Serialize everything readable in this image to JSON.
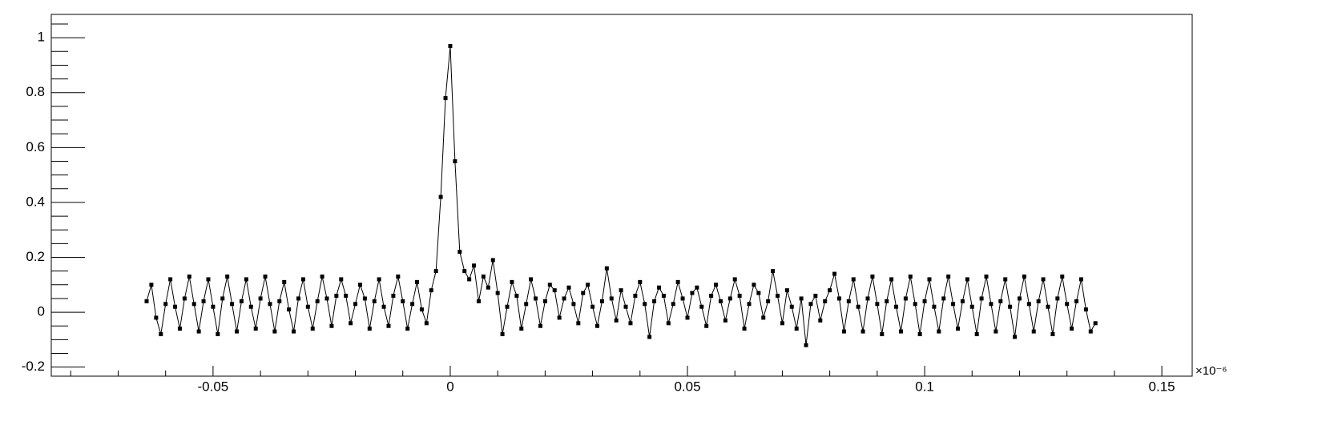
{
  "chart_data": {
    "type": "line",
    "color": "#000000",
    "x_multiplier": "×10⁻⁶",
    "xlim": [
      -0.0841,
      0.1564
    ],
    "ylim": [
      -0.233,
      1.085
    ],
    "xticks": [
      -0.05,
      0,
      0.05,
      0.1,
      0.15
    ],
    "yticks": [
      -0.2,
      0,
      0.2,
      0.4,
      0.6,
      0.8,
      1
    ],
    "xminorticks": [
      -0.08,
      -0.07,
      -0.06,
      -0.04,
      -0.03,
      -0.02,
      -0.01,
      0.01,
      0.02,
      0.03,
      0.04,
      0.06,
      0.07,
      0.08,
      0.09,
      0.11,
      0.12,
      0.13,
      0.14
    ],
    "yminorticks": [
      -0.15,
      -0.1,
      -0.05,
      0.05,
      0.1,
      0.15,
      0.25,
      0.3,
      0.35,
      0.45,
      0.5,
      0.55,
      0.65,
      0.7,
      0.75,
      0.85,
      0.9,
      0.95,
      1.05
    ],
    "x": [
      -0.064,
      -0.063,
      -0.062,
      -0.061,
      -0.06,
      -0.059,
      -0.058,
      -0.057,
      -0.056,
      -0.055,
      -0.054,
      -0.053,
      -0.052,
      -0.051,
      -0.05,
      -0.049,
      -0.048,
      -0.047,
      -0.046,
      -0.045,
      -0.044,
      -0.043,
      -0.042,
      -0.041,
      -0.04,
      -0.039,
      -0.038,
      -0.037,
      -0.036,
      -0.035,
      -0.034,
      -0.033,
      -0.032,
      -0.031,
      -0.03,
      -0.029,
      -0.028,
      -0.027,
      -0.026,
      -0.025,
      -0.024,
      -0.023,
      -0.022,
      -0.021,
      -0.02,
      -0.019,
      -0.018,
      -0.017,
      -0.016,
      -0.015,
      -0.014,
      -0.013,
      -0.012,
      -0.011,
      -0.01,
      -0.009,
      -0.008,
      -0.007,
      -0.006,
      -0.005,
      -0.004,
      -0.003,
      -0.002,
      -0.001,
      0,
      0.001,
      0.002,
      0.003,
      0.004,
      0.005,
      0.006,
      0.007,
      0.008,
      0.009,
      0.01,
      0.011,
      0.012,
      0.013,
      0.014,
      0.015,
      0.016,
      0.017,
      0.018,
      0.019,
      0.02,
      0.021,
      0.022,
      0.023,
      0.024,
      0.025,
      0.026,
      0.027,
      0.028,
      0.029,
      0.03,
      0.031,
      0.032,
      0.033,
      0.034,
      0.035,
      0.036,
      0.037,
      0.038,
      0.039,
      0.04,
      0.041,
      0.042,
      0.043,
      0.044,
      0.045,
      0.046,
      0.047,
      0.048,
      0.049,
      0.05,
      0.051,
      0.052,
      0.053,
      0.054,
      0.055,
      0.056,
      0.057,
      0.058,
      0.059,
      0.06,
      0.061,
      0.062,
      0.063,
      0.064,
      0.065,
      0.066,
      0.067,
      0.068,
      0.069,
      0.07,
      0.071,
      0.072,
      0.073,
      0.074,
      0.075,
      0.076,
      0.077,
      0.078,
      0.079,
      0.08,
      0.081,
      0.082,
      0.083,
      0.084,
      0.085,
      0.086,
      0.087,
      0.088,
      0.089,
      0.09,
      0.091,
      0.092,
      0.093,
      0.094,
      0.095,
      0.096,
      0.097,
      0.098,
      0.099,
      0.1,
      0.101,
      0.102,
      0.103,
      0.104,
      0.105,
      0.106,
      0.107,
      0.108,
      0.109,
      0.11,
      0.111,
      0.112,
      0.113,
      0.114,
      0.115,
      0.116,
      0.117,
      0.118,
      0.119,
      0.12,
      0.121,
      0.122,
      0.123,
      0.124,
      0.125,
      0.126,
      0.127,
      0.128,
      0.129,
      0.13,
      0.131,
      0.132,
      0.133,
      0.134,
      0.135,
      0.136
    ],
    "series": [
      {
        "color": "#000000",
        "values": [
          0.04,
          0.1,
          -0.02,
          -0.08,
          0.03,
          0.12,
          0.02,
          -0.06,
          0.05,
          0.13,
          0.03,
          -0.07,
          0.04,
          0.12,
          0.02,
          -0.08,
          0.05,
          0.13,
          0.03,
          -0.07,
          0.04,
          0.12,
          0.02,
          -0.06,
          0.05,
          0.13,
          0.03,
          -0.07,
          0.04,
          0.11,
          0.01,
          -0.07,
          0.05,
          0.12,
          0.02,
          -0.06,
          0.04,
          0.13,
          0.05,
          -0.05,
          0.06,
          0.12,
          0.06,
          -0.04,
          0.03,
          0.1,
          0.05,
          -0.06,
          0.04,
          0.12,
          0.02,
          -0.05,
          0.06,
          0.13,
          0.04,
          -0.06,
          0.03,
          0.11,
          0.01,
          -0.04,
          0.08,
          0.15,
          0.42,
          0.78,
          0.97,
          0.55,
          0.22,
          0.15,
          0.12,
          0.17,
          0.04,
          0.13,
          0.09,
          0.19,
          0.07,
          -0.08,
          0.02,
          0.11,
          0.06,
          -0.06,
          0.03,
          0.12,
          0.05,
          -0.05,
          0.04,
          0.1,
          0.08,
          -0.02,
          0.05,
          0.09,
          0.03,
          -0.04,
          0.07,
          0.1,
          0.02,
          -0.05,
          0.04,
          0.16,
          0.05,
          -0.03,
          0.08,
          0.02,
          -0.04,
          0.06,
          0.11,
          0.03,
          -0.09,
          0.04,
          0.09,
          0.06,
          -0.04,
          0.03,
          0.11,
          0.05,
          -0.02,
          0.07,
          0.09,
          0.02,
          -0.05,
          0.06,
          0.1,
          0.04,
          -0.03,
          0.05,
          0.12,
          0.06,
          -0.06,
          0.03,
          0.1,
          0.07,
          -0.02,
          0.04,
          0.15,
          0.06,
          -0.04,
          0.08,
          0.02,
          -0.06,
          0.05,
          -0.12,
          0.03,
          0.06,
          -0.03,
          0.04,
          0.08,
          0.14,
          0.05,
          -0.07,
          0.04,
          0.12,
          0.02,
          -0.07,
          0.05,
          0.13,
          0.03,
          -0.08,
          0.04,
          0.12,
          0.02,
          -0.07,
          0.05,
          0.13,
          0.03,
          -0.08,
          0.04,
          0.12,
          0.02,
          -0.07,
          0.05,
          0.13,
          0.03,
          -0.06,
          0.04,
          0.12,
          0.02,
          -0.08,
          0.05,
          0.13,
          0.03,
          -0.07,
          0.04,
          0.12,
          0.02,
          -0.09,
          0.05,
          0.13,
          0.03,
          -0.07,
          0.04,
          0.12,
          0.02,
          -0.08,
          0.05,
          0.13,
          0.03,
          -0.06,
          0.04,
          0.12,
          0.01,
          -0.07,
          -0.04
        ]
      }
    ]
  }
}
